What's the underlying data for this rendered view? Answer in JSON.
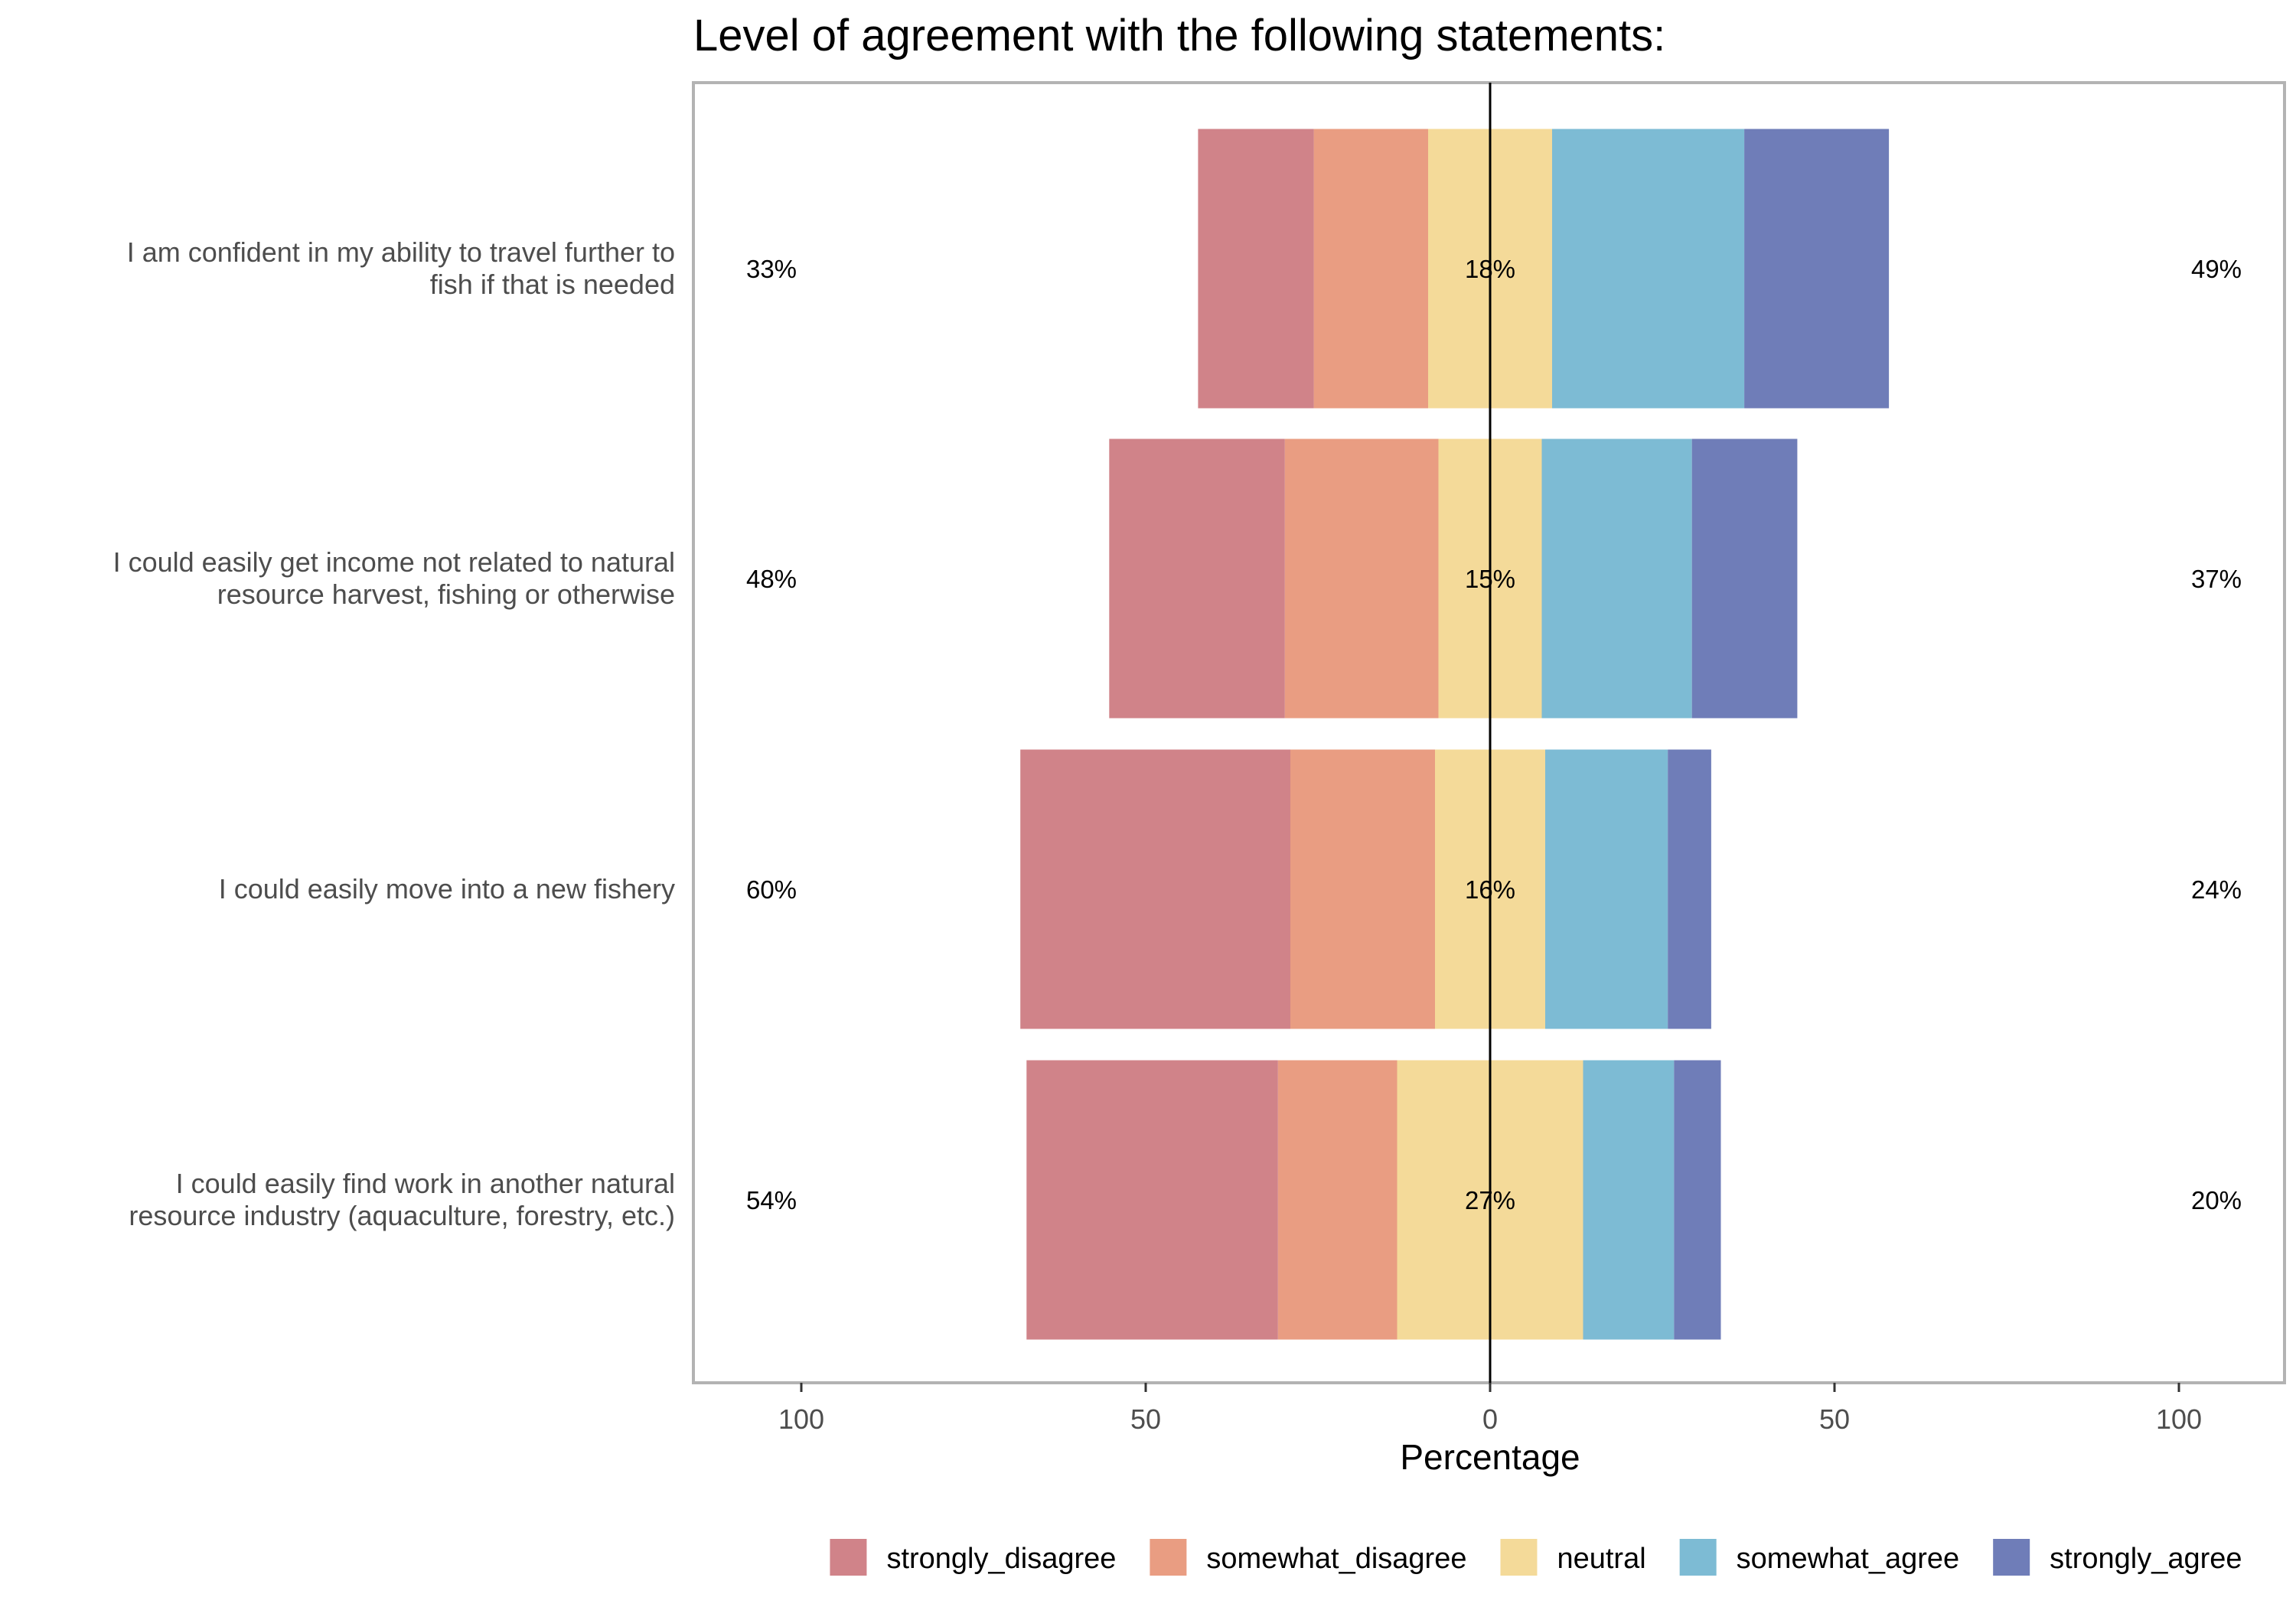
{
  "chart_data": {
    "type": "bar",
    "orientation": "horizontal",
    "stacking": "diverging",
    "title": "Level of agreement with the following statements:",
    "xlabel": "Percentage",
    "xlim": [
      -100,
      100
    ],
    "x_ticks": [
      -100,
      -50,
      0,
      50,
      100
    ],
    "x_tick_labels": [
      "100",
      "50",
      "0",
      "50",
      "100"
    ],
    "grid": false,
    "legend_position": "bottom",
    "categories": [
      [
        "I am confident in my ability to travel further to",
        "fish if that is needed"
      ],
      [
        "I could easily get income not related to natural",
        "resource harvest, fishing or otherwise"
      ],
      [
        "I could easily move into a new fishery"
      ],
      [
        "I could easily find work in another natural",
        "resource industry (aquaculture, forestry, etc.)"
      ]
    ],
    "series": [
      {
        "name": "strongly_disagree",
        "color": "#d08389",
        "values": [
          16.8,
          25.5,
          39.2,
          36.5
        ]
      },
      {
        "name": "somewhat_disagree",
        "color": "#e99d82",
        "values": [
          16.6,
          22.3,
          21.0,
          17.3
        ]
      },
      {
        "name": "neutral",
        "color": "#f4da99",
        "values": [
          18,
          15,
          16,
          27
        ]
      },
      {
        "name": "somewhat_agree",
        "color": "#7dbbd4",
        "values": [
          27.9,
          21.8,
          17.8,
          13.2
        ]
      },
      {
        "name": "strongly_agree",
        "color": "#6f7db8",
        "values": [
          21.0,
          15.3,
          6.3,
          6.8
        ]
      }
    ],
    "disagree_labels": [
      "33%",
      "48%",
      "60%",
      "54%"
    ],
    "neutral_labels": [
      "18%",
      "15%",
      "16%",
      "27%"
    ],
    "agree_labels": [
      "49%",
      "37%",
      "24%",
      "20%"
    ],
    "panel_border_color": "#b3b3b3",
    "zero_line_color": "#000000"
  }
}
